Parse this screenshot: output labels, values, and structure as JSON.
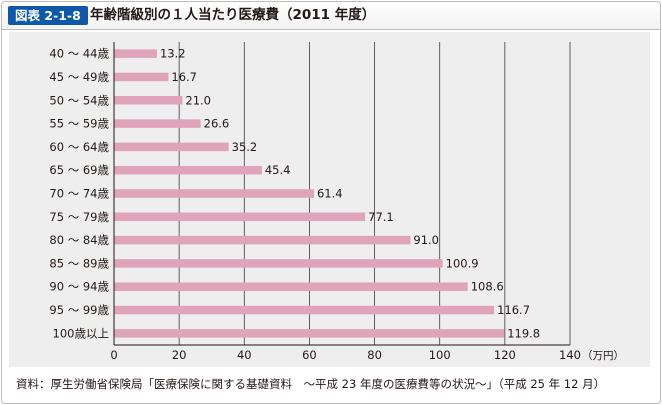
{
  "header": {
    "figure_label": "図表 2-1-8",
    "title": "年齢階級別の１人当たり医療費（2011 年度）"
  },
  "chart_data": {
    "type": "bar",
    "orientation": "horizontal",
    "categories": [
      "40 ～ 44歳",
      "45 ～ 49歳",
      "50 ～ 54歳",
      "55 ～ 59歳",
      "60 ～ 64歳",
      "65 ～ 69歳",
      "70 ～ 74歳",
      "75 ～ 79歳",
      "80 ～ 84歳",
      "85 ～ 89歳",
      "90 ～ 94歳",
      "95 ～ 99歳",
      "100歳以上"
    ],
    "values": [
      13.2,
      16.7,
      21.0,
      26.6,
      35.2,
      45.4,
      61.4,
      77.1,
      91.0,
      100.9,
      108.6,
      116.7,
      119.8
    ],
    "value_labels": [
      "13.2",
      "16.7",
      "21.0",
      "26.6",
      "35.2",
      "45.4",
      "61.4",
      "77.1",
      "91.0",
      "100.9",
      "108.6",
      "116.7",
      "119.8"
    ],
    "xlim": [
      0,
      140
    ],
    "xticks": [
      0,
      20,
      40,
      60,
      80,
      100,
      120,
      140
    ],
    "xtick_labels": [
      "0",
      "20",
      "40",
      "60",
      "80",
      "100",
      "120",
      "140"
    ],
    "x_unit": "（万円）",
    "grid": "vertical",
    "bar_color": "#dfa3ba",
    "title": "年齢階級別の１人当たり医療費（2011 年度）"
  },
  "footer": {
    "source": "資料：厚生労働省保険局「医療保険に関する基礎資料　～平成 23 年度の医療費等の状況～」（平成 25 年 12 月）"
  }
}
